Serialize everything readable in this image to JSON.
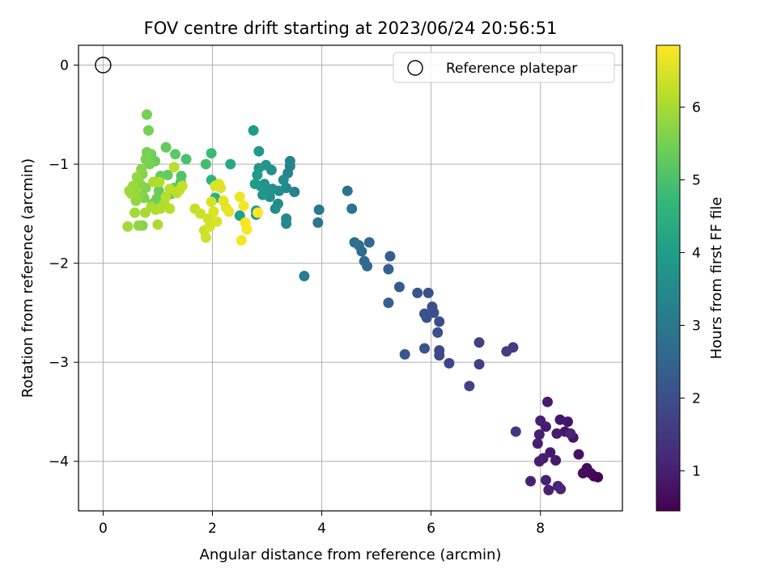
{
  "chart_data": {
    "type": "scatter",
    "title": "FOV centre drift starting at 2023/06/24 20:56:51",
    "xlabel": "Angular distance from reference (arcmin)",
    "ylabel": "Rotation from reference (arcmin)",
    "xlim": [
      -0.45,
      9.5
    ],
    "ylim": [
      -4.5,
      0.2
    ],
    "xticks": [
      0,
      2,
      4,
      6,
      8
    ],
    "yticks": [
      0,
      -1,
      -2,
      -3,
      -4
    ],
    "xtick_labels": [
      "0",
      "2",
      "4",
      "6",
      "8"
    ],
    "ytick_labels": [
      "0",
      "−1",
      "−2",
      "−3",
      "−4"
    ],
    "grid": true,
    "legend": {
      "placement": "top-right",
      "entries": [
        {
          "label": "Reference platepar",
          "marker": "open-circle"
        }
      ]
    },
    "reference_point": {
      "x": 0,
      "y": 0
    },
    "colorbar": {
      "label": "Hours from first FF file",
      "colormap": "viridis",
      "range": [
        0.45,
        6.85
      ],
      "ticks": [
        1,
        2,
        3,
        4,
        5,
        6
      ],
      "tick_labels": [
        "1",
        "2",
        "3",
        "4",
        "5",
        "6"
      ]
    },
    "colormap_stops": [
      "#440154",
      "#482878",
      "#3e4989",
      "#31688e",
      "#26828e",
      "#1f9e89",
      "#35b779",
      "#6ece58",
      "#b5de2b",
      "#fde725"
    ],
    "points": [
      {
        "x": 9.05,
        "y": -4.16,
        "h": 0.5
      },
      {
        "x": 8.98,
        "y": -4.15,
        "h": 0.55
      },
      {
        "x": 8.92,
        "y": -4.12,
        "h": 0.6
      },
      {
        "x": 8.85,
        "y": -4.07,
        "h": 0.65
      },
      {
        "x": 8.78,
        "y": -4.12,
        "h": 0.65
      },
      {
        "x": 8.7,
        "y": -3.93,
        "h": 0.75
      },
      {
        "x": 8.6,
        "y": -3.76,
        "h": 0.8
      },
      {
        "x": 8.5,
        "y": -3.6,
        "h": 0.8
      },
      {
        "x": 8.45,
        "y": -3.7,
        "h": 0.85
      },
      {
        "x": 8.36,
        "y": -3.58,
        "h": 0.85
      },
      {
        "x": 8.3,
        "y": -3.72,
        "h": 0.9
      },
      {
        "x": 8.28,
        "y": -3.99,
        "h": 0.9
      },
      {
        "x": 8.18,
        "y": -3.91,
        "h": 0.9
      },
      {
        "x": 8.13,
        "y": -3.4,
        "h": 0.95
      },
      {
        "x": 8.1,
        "y": -3.65,
        "h": 0.95
      },
      {
        "x": 8.05,
        "y": -3.97,
        "h": 1.0
      },
      {
        "x": 8.0,
        "y": -3.59,
        "h": 1.0
      },
      {
        "x": 7.98,
        "y": -3.73,
        "h": 1.0
      },
      {
        "x": 7.95,
        "y": -3.82,
        "h": 1.0
      },
      {
        "x": 7.98,
        "y": -4.0,
        "h": 1.0
      },
      {
        "x": 7.82,
        "y": -4.2,
        "h": 1.05
      },
      {
        "x": 8.1,
        "y": -4.19,
        "h": 1.05
      },
      {
        "x": 8.15,
        "y": -4.29,
        "h": 1.05
      },
      {
        "x": 8.32,
        "y": -4.25,
        "h": 1.1
      },
      {
        "x": 8.37,
        "y": -4.28,
        "h": 1.1
      },
      {
        "x": 8.55,
        "y": -3.72,
        "h": 1.1
      },
      {
        "x": 7.55,
        "y": -3.7,
        "h": 1.5
      },
      {
        "x": 7.5,
        "y": -2.85,
        "h": 1.6
      },
      {
        "x": 7.38,
        "y": -2.89,
        "h": 1.6
      },
      {
        "x": 6.88,
        "y": -2.8,
        "h": 1.7
      },
      {
        "x": 6.88,
        "y": -3.02,
        "h": 1.7
      },
      {
        "x": 6.7,
        "y": -3.24,
        "h": 1.75
      },
      {
        "x": 6.33,
        "y": -3.01,
        "h": 1.8
      },
      {
        "x": 6.15,
        "y": -2.93,
        "h": 1.85
      },
      {
        "x": 6.15,
        "y": -2.88,
        "h": 1.9
      },
      {
        "x": 6.12,
        "y": -2.7,
        "h": 1.95
      },
      {
        "x": 6.15,
        "y": -2.59,
        "h": 1.95
      },
      {
        "x": 6.05,
        "y": -2.5,
        "h": 2.0
      },
      {
        "x": 6.02,
        "y": -2.44,
        "h": 2.0
      },
      {
        "x": 5.95,
        "y": -2.3,
        "h": 2.05
      },
      {
        "x": 5.92,
        "y": -2.55,
        "h": 2.05
      },
      {
        "x": 5.88,
        "y": -2.51,
        "h": 2.1
      },
      {
        "x": 5.88,
        "y": -2.86,
        "h": 2.1
      },
      {
        "x": 5.75,
        "y": -2.3,
        "h": 2.15
      },
      {
        "x": 5.52,
        "y": -2.92,
        "h": 2.2
      },
      {
        "x": 5.42,
        "y": -2.24,
        "h": 2.3
      },
      {
        "x": 5.25,
        "y": -1.93,
        "h": 2.35
      },
      {
        "x": 5.22,
        "y": -2.06,
        "h": 2.4
      },
      {
        "x": 5.22,
        "y": -2.4,
        "h": 2.4
      },
      {
        "x": 4.87,
        "y": -1.79,
        "h": 2.6
      },
      {
        "x": 4.83,
        "y": -2.03,
        "h": 2.6
      },
      {
        "x": 4.78,
        "y": -1.98,
        "h": 2.65
      },
      {
        "x": 4.73,
        "y": -1.88,
        "h": 2.7
      },
      {
        "x": 4.68,
        "y": -1.82,
        "h": 2.75
      },
      {
        "x": 4.6,
        "y": -1.79,
        "h": 2.8
      },
      {
        "x": 4.55,
        "y": -1.45,
        "h": 2.85
      },
      {
        "x": 4.47,
        "y": -1.27,
        "h": 2.9
      },
      {
        "x": 3.95,
        "y": -1.46,
        "h": 3.0
      },
      {
        "x": 3.93,
        "y": -1.59,
        "h": 3.0
      },
      {
        "x": 3.68,
        "y": -2.13,
        "h": 3.1
      },
      {
        "x": 3.5,
        "y": -1.28,
        "h": 3.3
      },
      {
        "x": 3.42,
        "y": -0.97,
        "h": 3.35
      },
      {
        "x": 3.42,
        "y": -1.02,
        "h": 3.35
      },
      {
        "x": 3.38,
        "y": -1.09,
        "h": 3.4
      },
      {
        "x": 3.35,
        "y": -1.24,
        "h": 3.4
      },
      {
        "x": 3.35,
        "y": -1.55,
        "h": 3.45
      },
      {
        "x": 3.35,
        "y": -1.6,
        "h": 3.45
      },
      {
        "x": 3.3,
        "y": -1.16,
        "h": 3.5
      },
      {
        "x": 3.22,
        "y": -1.27,
        "h": 3.55
      },
      {
        "x": 3.2,
        "y": -1.4,
        "h": 3.55
      },
      {
        "x": 3.15,
        "y": -1.45,
        "h": 3.6
      },
      {
        "x": 3.1,
        "y": -1.25,
        "h": 3.6
      },
      {
        "x": 3.08,
        "y": -1.06,
        "h": 3.65
      },
      {
        "x": 3.05,
        "y": -1.33,
        "h": 3.65
      },
      {
        "x": 3.0,
        "y": -1.28,
        "h": 3.7
      },
      {
        "x": 2.98,
        "y": -1.01,
        "h": 3.75
      },
      {
        "x": 2.95,
        "y": -1.2,
        "h": 3.75
      },
      {
        "x": 2.92,
        "y": -1.31,
        "h": 3.8
      },
      {
        "x": 2.88,
        "y": -1.22,
        "h": 3.8
      },
      {
        "x": 2.85,
        "y": -0.87,
        "h": 3.85
      },
      {
        "x": 2.85,
        "y": -1.04,
        "h": 3.85
      },
      {
        "x": 2.82,
        "y": -1.11,
        "h": 3.9
      },
      {
        "x": 2.8,
        "y": -1.51,
        "h": 3.9
      },
      {
        "x": 2.75,
        "y": -0.66,
        "h": 3.95
      },
      {
        "x": 2.78,
        "y": -1.2,
        "h": 3.95
      },
      {
        "x": 2.8,
        "y": -1.47,
        "h": 4.0
      },
      {
        "x": 2.5,
        "y": -1.52,
        "h": 4.05
      },
      {
        "x": 2.33,
        "y": -1.0,
        "h": 4.3
      },
      {
        "x": 2.05,
        "y": -1.34,
        "h": 4.5
      },
      {
        "x": 1.98,
        "y": -1.16,
        "h": 4.6
      },
      {
        "x": 1.98,
        "y": -0.89,
        "h": 4.8
      },
      {
        "x": 1.88,
        "y": -1.0,
        "h": 4.9
      },
      {
        "x": 1.52,
        "y": -0.95,
        "h": 5.0
      },
      {
        "x": 1.43,
        "y": -1.12,
        "h": 5.1
      },
      {
        "x": 1.42,
        "y": -1.18,
        "h": 5.1
      },
      {
        "x": 1.32,
        "y": -0.9,
        "h": 5.2
      },
      {
        "x": 1.3,
        "y": -1.24,
        "h": 5.2
      },
      {
        "x": 1.25,
        "y": -1.3,
        "h": 5.25
      },
      {
        "x": 1.15,
        "y": -0.83,
        "h": 5.3
      },
      {
        "x": 1.18,
        "y": -1.11,
        "h": 5.3
      },
      {
        "x": 1.05,
        "y": -1.12,
        "h": 5.35
      },
      {
        "x": 1.02,
        "y": -1.27,
        "h": 5.35
      },
      {
        "x": 0.98,
        "y": -1.35,
        "h": 5.4
      },
      {
        "x": 0.95,
        "y": -0.97,
        "h": 5.4
      },
      {
        "x": 0.9,
        "y": -1.4,
        "h": 5.45
      },
      {
        "x": 0.88,
        "y": -0.9,
        "h": 5.45
      },
      {
        "x": 0.85,
        "y": -1.0,
        "h": 5.5
      },
      {
        "x": 0.8,
        "y": -0.5,
        "h": 5.5
      },
      {
        "x": 0.83,
        "y": -0.66,
        "h": 5.5
      },
      {
        "x": 0.8,
        "y": -0.88,
        "h": 5.55
      },
      {
        "x": 0.78,
        "y": -0.95,
        "h": 5.55
      },
      {
        "x": 0.78,
        "y": -1.24,
        "h": 5.6
      },
      {
        "x": 0.75,
        "y": -1.34,
        "h": 5.6
      },
      {
        "x": 0.72,
        "y": -1.1,
        "h": 5.65
      },
      {
        "x": 0.72,
        "y": -1.62,
        "h": 5.65
      },
      {
        "x": 0.7,
        "y": -1.05,
        "h": 5.7
      },
      {
        "x": 0.68,
        "y": -1.2,
        "h": 5.7
      },
      {
        "x": 0.65,
        "y": -1.31,
        "h": 5.75
      },
      {
        "x": 0.65,
        "y": -1.62,
        "h": 5.75
      },
      {
        "x": 0.62,
        "y": -1.13,
        "h": 5.8
      },
      {
        "x": 0.6,
        "y": -1.37,
        "h": 5.8
      },
      {
        "x": 0.58,
        "y": -1.26,
        "h": 5.85
      },
      {
        "x": 0.55,
        "y": -1.22,
        "h": 5.85
      },
      {
        "x": 0.52,
        "y": -1.3,
        "h": 5.9
      },
      {
        "x": 0.48,
        "y": -1.27,
        "h": 5.9
      },
      {
        "x": 0.45,
        "y": -1.63,
        "h": 5.95
      },
      {
        "x": 0.58,
        "y": -1.49,
        "h": 5.95
      },
      {
        "x": 0.77,
        "y": -1.49,
        "h": 6.0
      },
      {
        "x": 0.88,
        "y": -1.43,
        "h": 6.0
      },
      {
        "x": 0.92,
        "y": -1.18,
        "h": 6.05
      },
      {
        "x": 0.96,
        "y": -1.46,
        "h": 6.05
      },
      {
        "x": 1.0,
        "y": -1.61,
        "h": 6.05
      },
      {
        "x": 1.03,
        "y": -1.18,
        "h": 6.1
      },
      {
        "x": 1.05,
        "y": -1.45,
        "h": 6.1
      },
      {
        "x": 1.12,
        "y": -1.4,
        "h": 6.1
      },
      {
        "x": 1.15,
        "y": -1.33,
        "h": 6.15
      },
      {
        "x": 1.22,
        "y": -1.45,
        "h": 6.15
      },
      {
        "x": 1.22,
        "y": -1.25,
        "h": 6.2
      },
      {
        "x": 1.3,
        "y": -1.03,
        "h": 6.2
      },
      {
        "x": 1.35,
        "y": -1.29,
        "h": 6.25
      },
      {
        "x": 1.4,
        "y": -1.26,
        "h": 6.25
      },
      {
        "x": 1.45,
        "y": -1.22,
        "h": 6.3
      },
      {
        "x": 1.68,
        "y": -1.45,
        "h": 6.3
      },
      {
        "x": 1.78,
        "y": -1.5,
        "h": 6.35
      },
      {
        "x": 1.85,
        "y": -1.67,
        "h": 6.35
      },
      {
        "x": 1.88,
        "y": -1.74,
        "h": 6.4
      },
      {
        "x": 1.92,
        "y": -1.55,
        "h": 6.4
      },
      {
        "x": 1.95,
        "y": -1.63,
        "h": 6.45
      },
      {
        "x": 1.98,
        "y": -1.38,
        "h": 6.45
      },
      {
        "x": 2.02,
        "y": -1.48,
        "h": 6.5
      },
      {
        "x": 2.05,
        "y": -1.22,
        "h": 6.5
      },
      {
        "x": 2.08,
        "y": -1.58,
        "h": 6.5
      },
      {
        "x": 2.12,
        "y": -1.2,
        "h": 6.55
      },
      {
        "x": 2.15,
        "y": -1.24,
        "h": 6.55
      },
      {
        "x": 2.2,
        "y": -1.37,
        "h": 6.6
      },
      {
        "x": 2.25,
        "y": -1.44,
        "h": 6.6
      },
      {
        "x": 2.3,
        "y": -1.48,
        "h": 6.65
      },
      {
        "x": 2.5,
        "y": -1.33,
        "h": 6.7
      },
      {
        "x": 2.53,
        "y": -1.77,
        "h": 6.75
      },
      {
        "x": 2.57,
        "y": -1.42,
        "h": 6.75
      },
      {
        "x": 2.6,
        "y": -1.59,
        "h": 6.8
      },
      {
        "x": 2.63,
        "y": -1.66,
        "h": 6.8
      },
      {
        "x": 2.83,
        "y": -1.49,
        "h": 6.85
      }
    ]
  }
}
